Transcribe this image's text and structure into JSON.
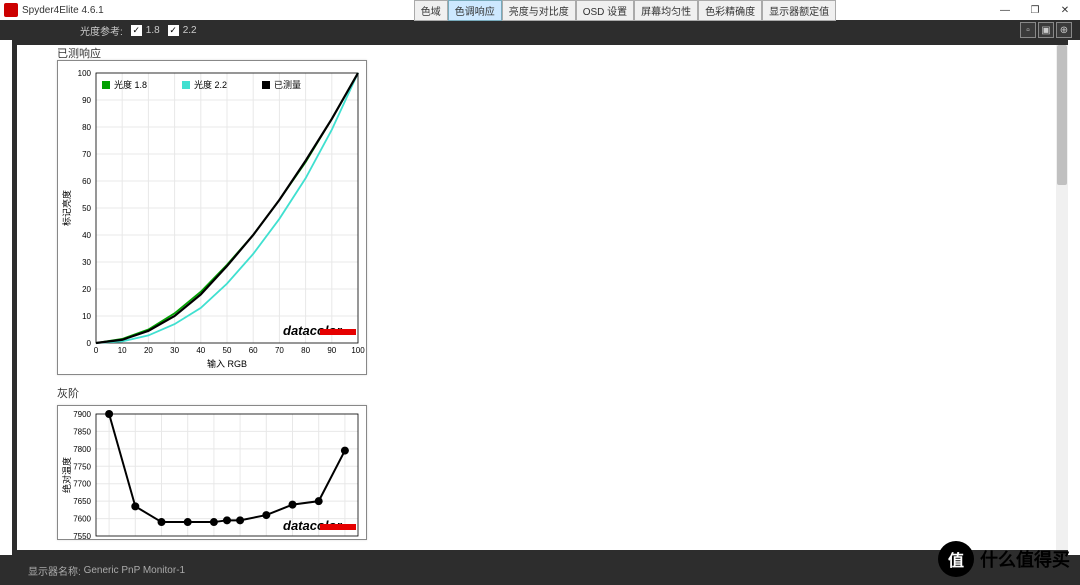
{
  "app": {
    "title": "Spyder4Elite 4.6.1"
  },
  "tabs": [
    {
      "label": "色域",
      "active": false
    },
    {
      "label": "色调响应",
      "active": true
    },
    {
      "label": "亮度与对比度",
      "active": false
    },
    {
      "label": "OSD 设置",
      "active": false
    },
    {
      "label": "屏幕均匀性",
      "active": false
    },
    {
      "label": "色彩精确度",
      "active": false
    },
    {
      "label": "显示器额定值",
      "active": false
    }
  ],
  "toolbar": {
    "ref_label": "光度参考:",
    "opt1": "1.8",
    "opt2": "2.2"
  },
  "cropped_title": "已测响应",
  "chart1": {
    "type": "line",
    "legend": [
      {
        "label": "光度 1.8",
        "color": "#00a000"
      },
      {
        "label": "光度 2.2",
        "color": "#40e0d0"
      },
      {
        "label": "已测量",
        "color": "#000000"
      }
    ],
    "x_label": "输入 RGB",
    "y_label": "标记亮度",
    "xlim": [
      0,
      100
    ],
    "ylim": [
      0,
      100
    ],
    "xtick_step": 10,
    "ytick_step": 10,
    "grid_color": "#e8e8e8",
    "bg": "#ffffff",
    "series": {
      "g18": {
        "color": "#00a000",
        "width": 1.8,
        "pts": [
          [
            0,
            0
          ],
          [
            10,
            1.5
          ],
          [
            20,
            5
          ],
          [
            30,
            11
          ],
          [
            40,
            19
          ],
          [
            50,
            29
          ],
          [
            60,
            40
          ],
          [
            70,
            53
          ],
          [
            80,
            67
          ],
          [
            90,
            83
          ],
          [
            100,
            100
          ]
        ]
      },
      "g22": {
        "color": "#40e0d0",
        "width": 1.8,
        "pts": [
          [
            0,
            0
          ],
          [
            10,
            0.6
          ],
          [
            20,
            2.8
          ],
          [
            30,
            7
          ],
          [
            40,
            13
          ],
          [
            50,
            22
          ],
          [
            60,
            33
          ],
          [
            70,
            46
          ],
          [
            80,
            61
          ],
          [
            90,
            79
          ],
          [
            100,
            100
          ]
        ]
      },
      "meas": {
        "color": "#000000",
        "width": 2.2,
        "pts": [
          [
            0,
            0
          ],
          [
            10,
            1.2
          ],
          [
            20,
            4.5
          ],
          [
            30,
            10
          ],
          [
            40,
            18
          ],
          [
            50,
            28.5
          ],
          [
            60,
            40
          ],
          [
            70,
            53
          ],
          [
            80,
            67.5
          ],
          [
            90,
            83
          ],
          [
            100,
            100
          ]
        ]
      }
    },
    "brand": "datacolor"
  },
  "section2_label": "灰阶",
  "chart2": {
    "type": "line-marker",
    "y_label": "绝对温度",
    "ylim": [
      7550,
      7900
    ],
    "ytick_step": 50,
    "grid_color": "#e8e8e8",
    "bg": "#ffffff",
    "series": {
      "temp": {
        "color": "#000000",
        "width": 2,
        "marker": "circle",
        "marker_size": 4,
        "pts": [
          [
            10,
            7900
          ],
          [
            20,
            7635
          ],
          [
            30,
            7590
          ],
          [
            40,
            7590
          ],
          [
            50,
            7590
          ],
          [
            55,
            7595
          ],
          [
            60,
            7595
          ],
          [
            70,
            7610
          ],
          [
            80,
            7640
          ],
          [
            90,
            7650
          ],
          [
            100,
            7795
          ]
        ]
      }
    },
    "brand": "datacolor"
  },
  "status": {
    "label": "显示器名称:",
    "value": "Generic PnP Monitor-1"
  },
  "watermark": {
    "badge": "值",
    "text": "什么值得买"
  }
}
